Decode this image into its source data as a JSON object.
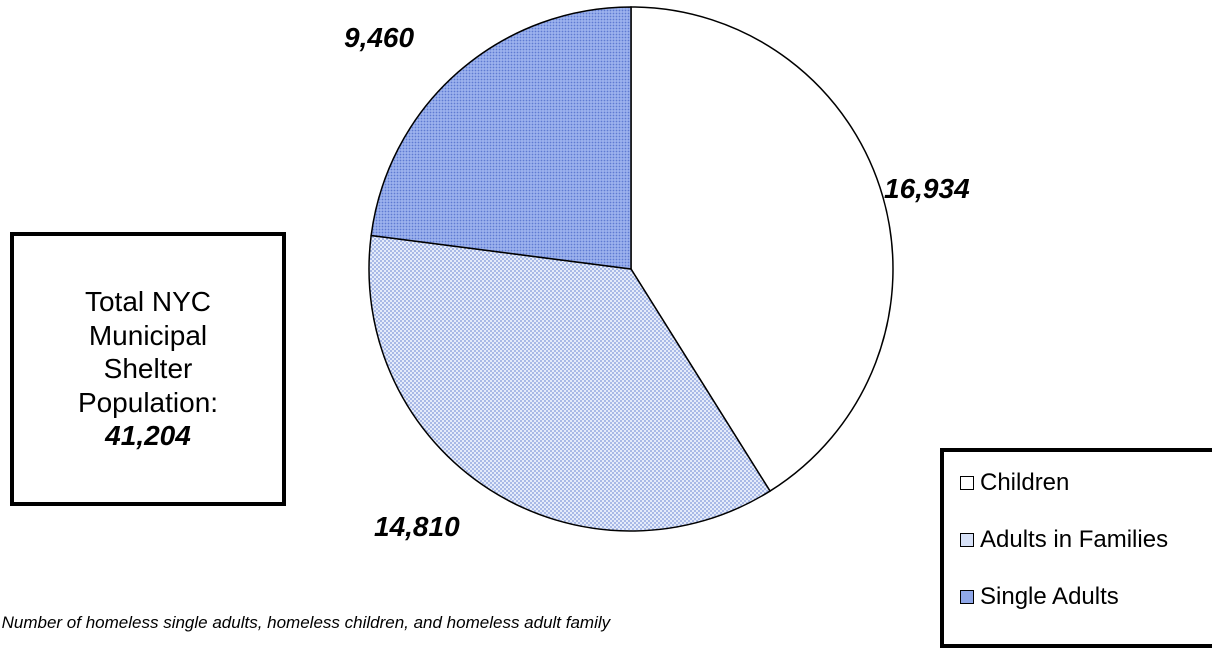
{
  "chart_data": {
    "type": "pie",
    "slices": [
      {
        "label": "Children",
        "value": 16934,
        "display": "16,934",
        "color": "#ffffff",
        "pattern": "none"
      },
      {
        "label": "Adults in Families",
        "value": 14810,
        "display": "14,810",
        "color": "#d7e1f7",
        "pattern": "dots-light"
      },
      {
        "label": "Single Adults",
        "value": 9460,
        "display": "9,460",
        "color": "#8fa7e8",
        "pattern": "dots-dense"
      }
    ],
    "start": "12 o'clock",
    "direction": "clockwise",
    "legend_position": "bottom-right"
  },
  "total_box": {
    "line1": "Total NYC",
    "line2": "Municipal",
    "line3": "Shelter",
    "line4": "Population:",
    "value": "41,204"
  },
  "legend": {
    "items": [
      "Children",
      "Adults in Families",
      "Single Adults"
    ]
  },
  "note": "te:  Number of homeless single adults, homeless children, and homeless adult family"
}
